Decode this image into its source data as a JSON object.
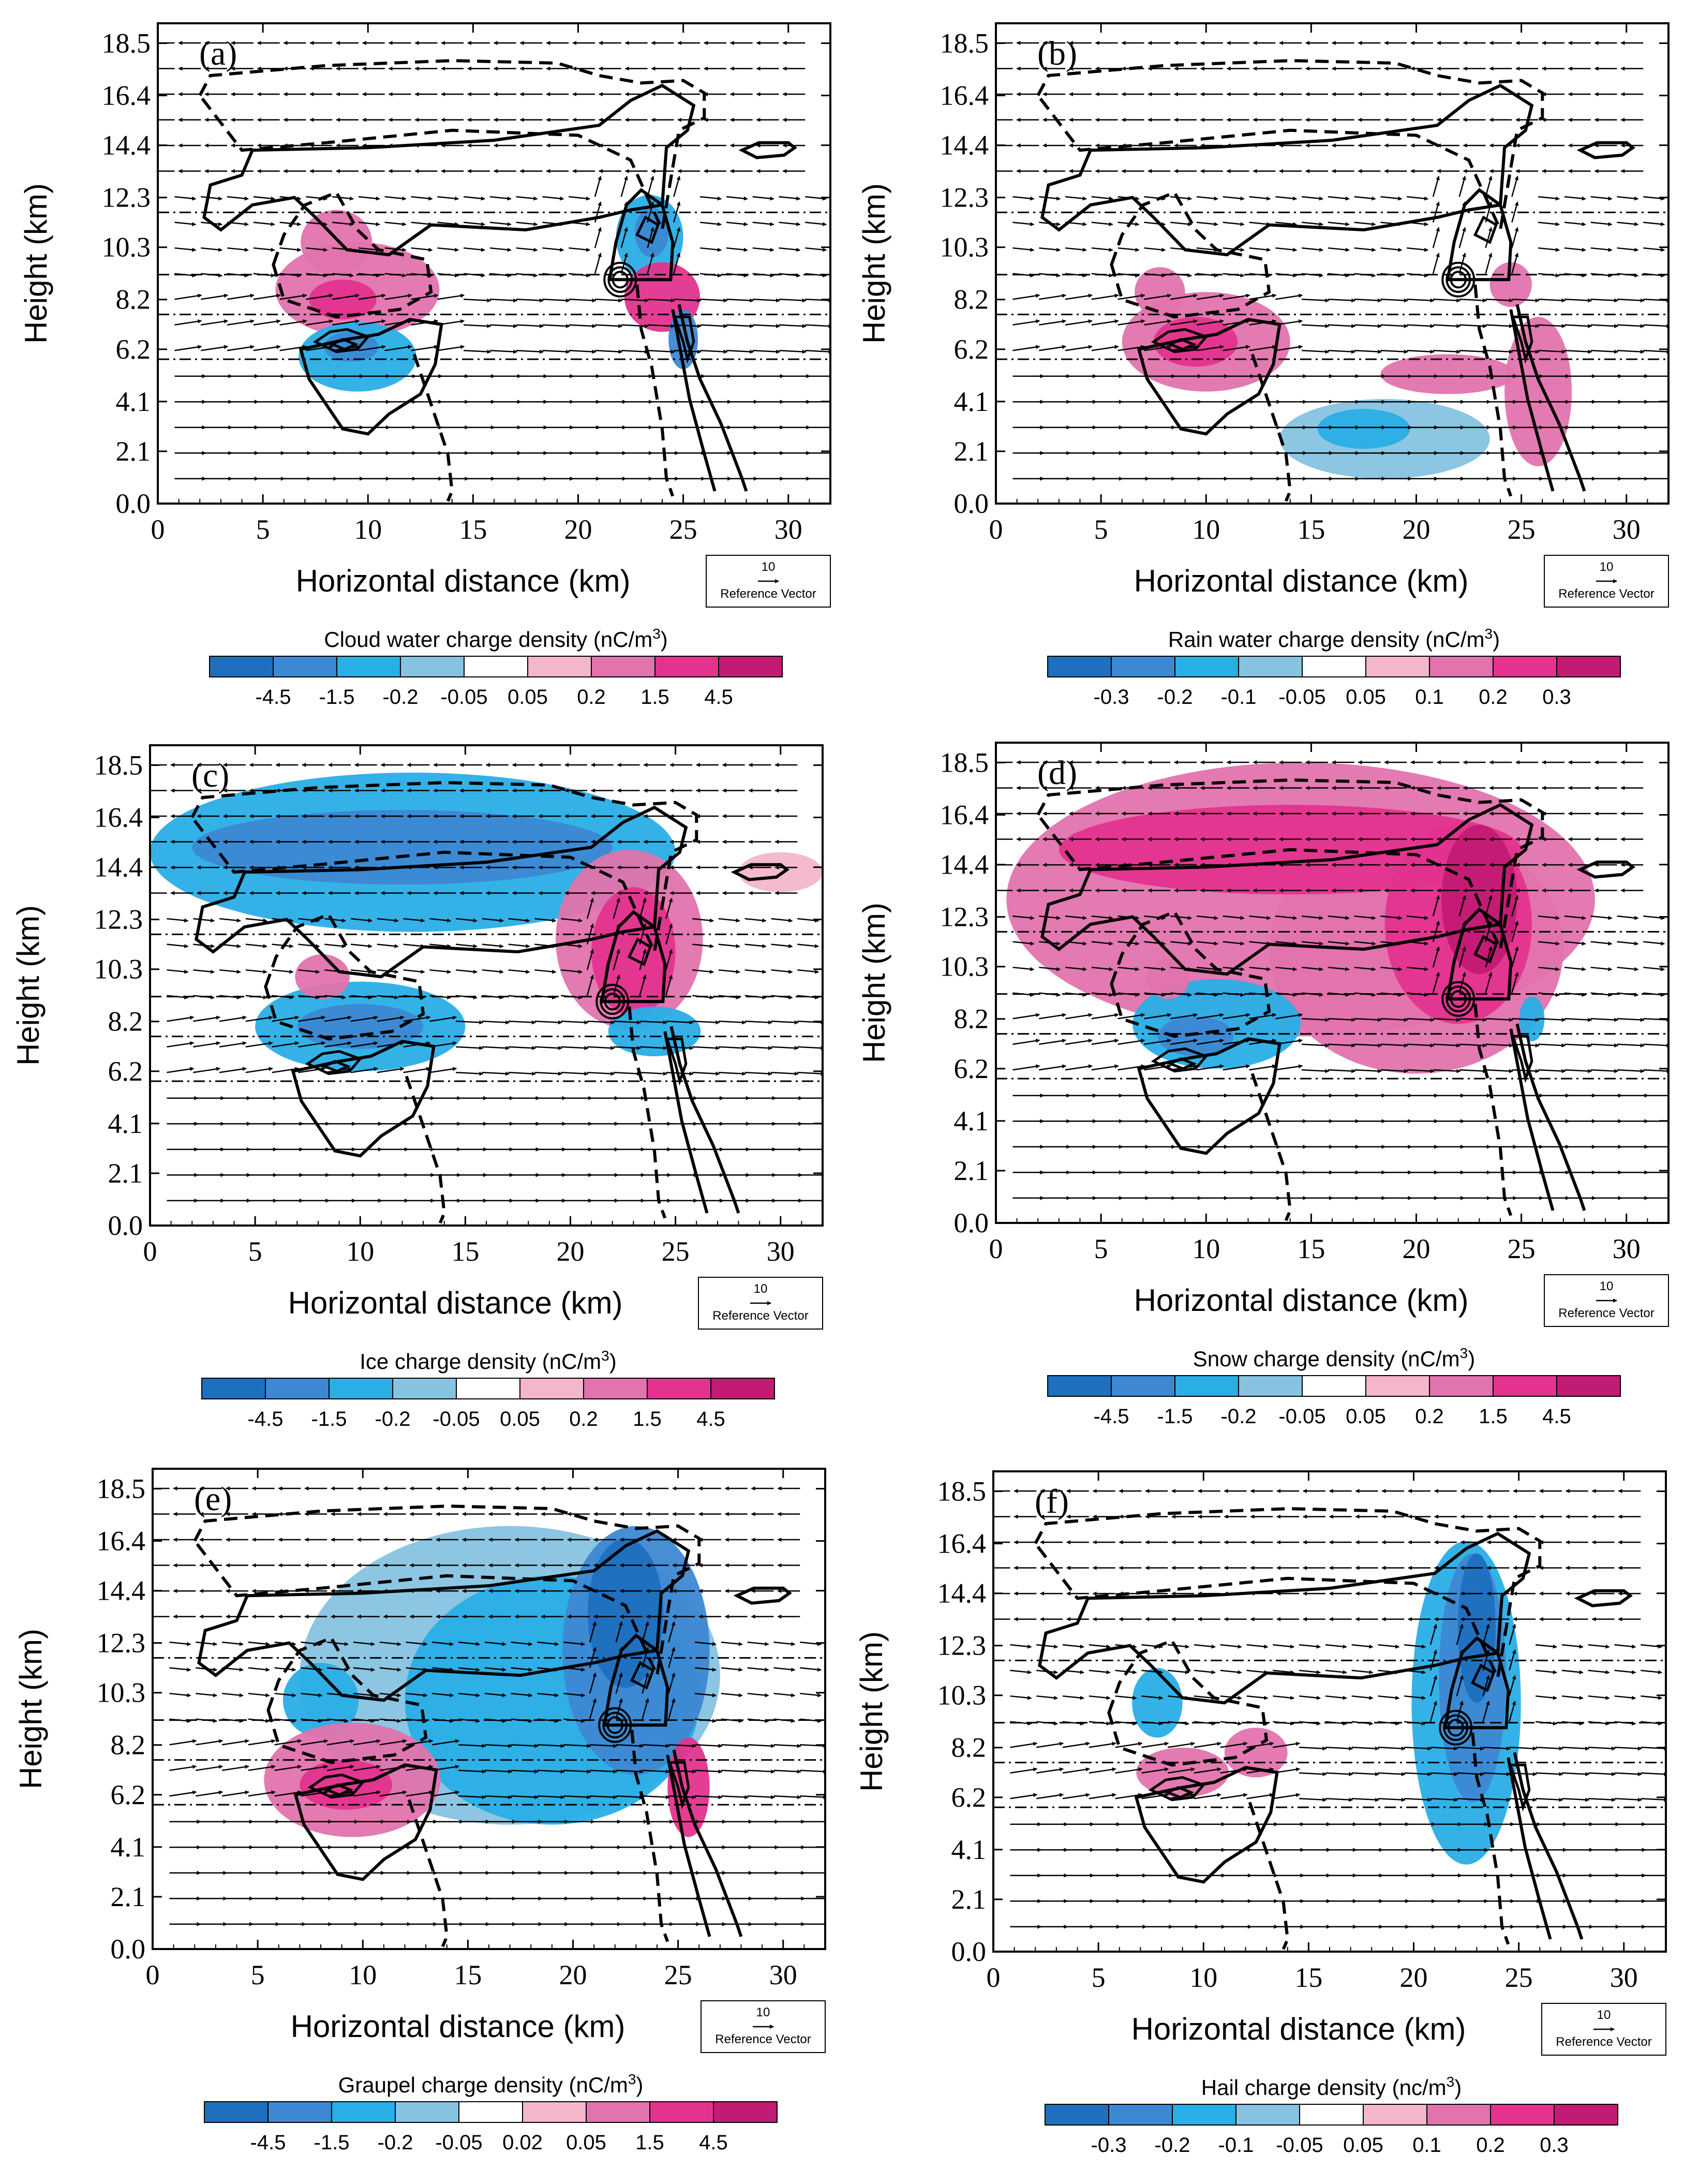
{
  "chart_data": [
    {
      "type": "contour",
      "panel_label": "(a)",
      "xlabel": "Horizontal distance (km)",
      "ylabel": "Height (km)",
      "x_ticks": [
        "0",
        "5",
        "10",
        "15",
        "20",
        "25",
        "30"
      ],
      "y_ticks": [
        "0.0",
        "2.1",
        "4.1",
        "6.2",
        "8.2",
        "10.3",
        "12.3",
        "14.4",
        "16.4",
        "18.5"
      ],
      "xlim": [
        0,
        32
      ],
      "ylim": [
        0,
        19.3
      ],
      "colorbar_title": "Cloud water charge density  (nC/m",
      "colorbar_unit_sup": "3",
      "colorbar_title_end": ")",
      "colorbar_levels": [
        "-4.5",
        "-1.5",
        "-0.2",
        "-0.05",
        "0.05",
        "0.2",
        "1.5",
        "4.5"
      ],
      "colorbar_colors": [
        "#1f6fbf",
        "#3d88d2",
        "#29aee6",
        "#86c3e1",
        "#ffffff",
        "#f3b6cb",
        "#e173ad",
        "#e3338e",
        "#c21b73"
      ],
      "reference_vector_value": "10",
      "reference_vector_label": "Reference Vector",
      "blobs": [
        {
          "cx": 9.5,
          "cy": 8.6,
          "rx": 3.9,
          "ry": 1.9,
          "level": 6
        },
        {
          "cx": 8.5,
          "cy": 10.5,
          "rx": 1.7,
          "ry": 1.3,
          "level": 6
        },
        {
          "cx": 8.8,
          "cy": 8.2,
          "rx": 1.6,
          "ry": 0.8,
          "level": 7
        },
        {
          "cx": 9.5,
          "cy": 5.9,
          "rx": 2.8,
          "ry": 1.4,
          "level": 2
        },
        {
          "cx": 9.2,
          "cy": 6.3,
          "rx": 1.3,
          "ry": 0.6,
          "level": 1
        },
        {
          "cx": 23.4,
          "cy": 10.7,
          "rx": 1.6,
          "ry": 1.7,
          "level": 2
        },
        {
          "cx": 23.5,
          "cy": 10.9,
          "rx": 0.8,
          "ry": 1.0,
          "level": 1
        },
        {
          "cx": 24.0,
          "cy": 8.3,
          "rx": 1.8,
          "ry": 1.4,
          "level": 7
        },
        {
          "cx": 25.0,
          "cy": 6.6,
          "rx": 0.7,
          "ry": 1.2,
          "level": 1
        }
      ]
    },
    {
      "type": "contour",
      "panel_label": "(b)",
      "xlabel": "Horizontal distance (km)",
      "ylabel": "Height (km)",
      "x_ticks": [
        "0",
        "5",
        "10",
        "15",
        "20",
        "25",
        "30"
      ],
      "y_ticks": [
        "0.0",
        "2.1",
        "4.1",
        "6.2",
        "8.2",
        "10.3",
        "12.3",
        "14.4",
        "16.4",
        "18.5"
      ],
      "xlim": [
        0,
        32
      ],
      "ylim": [
        0,
        19.3
      ],
      "colorbar_title": "Rain water charge density  (nC/m",
      "colorbar_unit_sup": "3",
      "colorbar_title_end": ")",
      "colorbar_levels": [
        "-0.3",
        "-0.2",
        "-0.1",
        "-0.05",
        "0.05",
        "0.1",
        "0.2",
        "0.3"
      ],
      "colorbar_colors": [
        "#1f6fbf",
        "#3d88d2",
        "#29aee6",
        "#86c3e1",
        "#ffffff",
        "#f3b6cb",
        "#e173ad",
        "#e3338e",
        "#c21b73"
      ],
      "reference_vector_value": "10",
      "reference_vector_label": "Reference Vector",
      "blobs": [
        {
          "cx": 10.0,
          "cy": 6.5,
          "rx": 4.0,
          "ry": 2.0,
          "level": 6
        },
        {
          "cx": 9.5,
          "cy": 6.5,
          "rx": 2.0,
          "ry": 1.0,
          "level": 7
        },
        {
          "cx": 7.8,
          "cy": 8.5,
          "rx": 1.2,
          "ry": 1.0,
          "level": 6
        },
        {
          "cx": 18.5,
          "cy": 2.6,
          "rx": 5.0,
          "ry": 1.6,
          "level": 3
        },
        {
          "cx": 17.5,
          "cy": 3.0,
          "rx": 2.2,
          "ry": 0.8,
          "level": 2
        },
        {
          "cx": 21.5,
          "cy": 5.2,
          "rx": 3.2,
          "ry": 0.8,
          "level": 6
        },
        {
          "cx": 25.8,
          "cy": 4.5,
          "rx": 1.6,
          "ry": 3.0,
          "level": 6
        },
        {
          "cx": 24.5,
          "cy": 8.8,
          "rx": 1.0,
          "ry": 0.9,
          "level": 6
        }
      ]
    },
    {
      "type": "contour",
      "panel_label": "(c)",
      "xlabel": "Horizontal distance (km)",
      "ylabel": "Height (km)",
      "x_ticks": [
        "0",
        "5",
        "10",
        "15",
        "20",
        "25",
        "30"
      ],
      "y_ticks": [
        "0.0",
        "2.1",
        "4.1",
        "6.2",
        "8.2",
        "10.3",
        "12.3",
        "14.4",
        "16.4",
        "18.5"
      ],
      "xlim": [
        0,
        32
      ],
      "ylim": [
        0,
        19.3
      ],
      "colorbar_title": "Ice charge density  (nC/m",
      "colorbar_unit_sup": "3",
      "colorbar_title_end": ")",
      "colorbar_levels": [
        "-4.5",
        "-1.5",
        "-0.2",
        "-0.05",
        "0.05",
        "0.2",
        "1.5",
        "4.5"
      ],
      "colorbar_colors": [
        "#1f6fbf",
        "#3d88d2",
        "#29aee6",
        "#86c3e1",
        "#ffffff",
        "#f3b6cb",
        "#e173ad",
        "#e3338e",
        "#c21b73"
      ],
      "reference_vector_value": "10",
      "reference_vector_label": "Reference Vector",
      "blobs": [
        {
          "cx": 12.5,
          "cy": 15.0,
          "rx": 12.5,
          "ry": 3.2,
          "level": 2
        },
        {
          "cx": 12.0,
          "cy": 15.2,
          "rx": 10.0,
          "ry": 1.5,
          "level": 1
        },
        {
          "cx": 10.0,
          "cy": 8.0,
          "rx": 5.0,
          "ry": 1.8,
          "level": 2
        },
        {
          "cx": 10.0,
          "cy": 8.0,
          "rx": 3.0,
          "ry": 0.9,
          "level": 1
        },
        {
          "cx": 22.8,
          "cy": 11.5,
          "rx": 3.5,
          "ry": 3.6,
          "level": 6
        },
        {
          "cx": 23.0,
          "cy": 11.0,
          "rx": 2.0,
          "ry": 2.6,
          "level": 7
        },
        {
          "cx": 24.0,
          "cy": 7.8,
          "rx": 2.2,
          "ry": 1.0,
          "level": 2
        },
        {
          "cx": 8.2,
          "cy": 10.0,
          "rx": 1.3,
          "ry": 0.9,
          "level": 6
        },
        {
          "cx": 30.0,
          "cy": 14.2,
          "rx": 2.0,
          "ry": 0.8,
          "level": 5
        }
      ]
    },
    {
      "type": "contour",
      "panel_label": "(d)",
      "xlabel": "Horizontal distance (km)",
      "ylabel": "Height (km)",
      "x_ticks": [
        "0",
        "5",
        "10",
        "15",
        "20",
        "25",
        "30"
      ],
      "y_ticks": [
        "0.0",
        "2.1",
        "4.1",
        "6.2",
        "8.2",
        "10.3",
        "12.3",
        "14.4",
        "16.4",
        "18.5"
      ],
      "xlim": [
        0,
        32
      ],
      "ylim": [
        0,
        19.3
      ],
      "colorbar_title": "Snow charge density  (nC/m",
      "colorbar_unit_sup": "3",
      "colorbar_title_end": ")",
      "colorbar_levels": [
        "-4.5",
        "-1.5",
        "-0.2",
        "-0.05",
        "0.05",
        "0.2",
        "1.5",
        "4.5"
      ],
      "colorbar_colors": [
        "#1f6fbf",
        "#3d88d2",
        "#29aee6",
        "#86c3e1",
        "#ffffff",
        "#f3b6cb",
        "#e173ad",
        "#e3338e",
        "#c21b73"
      ],
      "reference_vector_value": "10",
      "reference_vector_label": "Reference Vector",
      "blobs": [
        {
          "cx": 14.5,
          "cy": 13.0,
          "rx": 14.0,
          "ry": 5.5,
          "level": 6
        },
        {
          "cx": 20.0,
          "cy": 11.0,
          "rx": 7.0,
          "ry": 5.0,
          "level": 6
        },
        {
          "cx": 14.0,
          "cy": 15.0,
          "rx": 11.0,
          "ry": 1.8,
          "level": 7
        },
        {
          "cx": 22.0,
          "cy": 12.0,
          "rx": 3.5,
          "ry": 4.0,
          "level": 7
        },
        {
          "cx": 23.0,
          "cy": 13.0,
          "rx": 1.8,
          "ry": 3.0,
          "level": 8
        },
        {
          "cx": 10.5,
          "cy": 8.0,
          "rx": 4.0,
          "ry": 1.8,
          "level": 2
        },
        {
          "cx": 9.5,
          "cy": 7.5,
          "rx": 1.8,
          "ry": 0.8,
          "level": 1
        },
        {
          "cx": 8.2,
          "cy": 9.8,
          "rx": 1.0,
          "ry": 0.8,
          "level": 6
        },
        {
          "cx": 25.5,
          "cy": 8.2,
          "rx": 0.6,
          "ry": 0.9,
          "level": 2
        }
      ]
    },
    {
      "type": "contour",
      "panel_label": "(e)",
      "xlabel": "Horizontal distance (km)",
      "ylabel": "Height (km)",
      "x_ticks": [
        "0",
        "5",
        "10",
        "15",
        "20",
        "25",
        "30"
      ],
      "y_ticks": [
        "0.0",
        "2.1",
        "4.1",
        "6.2",
        "8.2",
        "10.3",
        "12.3",
        "14.4",
        "16.4",
        "18.5"
      ],
      "xlim": [
        0,
        32
      ],
      "ylim": [
        0,
        19.3
      ],
      "colorbar_title": "Graupel charge density  (nC/m",
      "colorbar_unit_sup": "3",
      "colorbar_title_end": ")",
      "colorbar_levels": [
        "-4.5",
        "-1.5",
        "-0.2",
        "-0.05",
        "0.02",
        "0.05",
        "1.5",
        "4.5"
      ],
      "colorbar_colors": [
        "#1f6fbf",
        "#3d88d2",
        "#29aee6",
        "#86c3e1",
        "#ffffff",
        "#f3b6cb",
        "#e173ad",
        "#e3338e",
        "#c21b73"
      ],
      "reference_vector_value": "10",
      "reference_vector_label": "Reference Vector",
      "blobs": [
        {
          "cx": 17.0,
          "cy": 11.0,
          "rx": 10.0,
          "ry": 6.0,
          "level": 3
        },
        {
          "cx": 19.0,
          "cy": 10.0,
          "rx": 7.0,
          "ry": 5.0,
          "level": 2
        },
        {
          "cx": 23.0,
          "cy": 12.0,
          "rx": 3.5,
          "ry": 5.0,
          "level": 1
        },
        {
          "cx": 22.5,
          "cy": 13.5,
          "rx": 1.8,
          "ry": 3.0,
          "level": 0
        },
        {
          "cx": 8.0,
          "cy": 10.0,
          "rx": 1.8,
          "ry": 1.5,
          "level": 2
        },
        {
          "cx": 9.5,
          "cy": 6.8,
          "rx": 4.2,
          "ry": 2.3,
          "level": 6
        },
        {
          "cx": 9.2,
          "cy": 6.6,
          "rx": 2.2,
          "ry": 1.0,
          "level": 7
        },
        {
          "cx": 25.5,
          "cy": 6.5,
          "rx": 1.0,
          "ry": 2.0,
          "level": 7
        }
      ]
    },
    {
      "type": "contour",
      "panel_label": "(f)",
      "xlabel": "Horizontal distance (km)",
      "ylabel": "Height (km)",
      "x_ticks": [
        "0",
        "5",
        "10",
        "15",
        "20",
        "25",
        "30"
      ],
      "y_ticks": [
        "0.0",
        "2.1",
        "4.1",
        "6.2",
        "8.2",
        "10.3",
        "12.3",
        "14.4",
        "16.4",
        "18.5"
      ],
      "xlim": [
        0,
        32
      ],
      "ylim": [
        0,
        19.3
      ],
      "colorbar_title": "Hail charge density  (nc/m",
      "colorbar_unit_sup": "3",
      "colorbar_title_end": ")",
      "colorbar_levels": [
        "-0.3",
        "-0.2",
        "-0.1",
        "-0.05",
        "0.05",
        "0.1",
        "0.2",
        "0.3"
      ],
      "colorbar_colors": [
        "#1f6fbf",
        "#3d88d2",
        "#29aee6",
        "#86c3e1",
        "#ffffff",
        "#f3b6cb",
        "#e173ad",
        "#e3338e",
        "#c21b73"
      ],
      "reference_vector_value": "10",
      "reference_vector_label": "Reference Vector",
      "blobs": [
        {
          "cx": 22.5,
          "cy": 10.0,
          "rx": 2.6,
          "ry": 6.5,
          "level": 2
        },
        {
          "cx": 22.8,
          "cy": 11.0,
          "rx": 1.6,
          "ry": 5.0,
          "level": 1
        },
        {
          "cx": 23.0,
          "cy": 13.0,
          "rx": 0.9,
          "ry": 3.0,
          "level": 0
        },
        {
          "cx": 7.8,
          "cy": 10.0,
          "rx": 1.2,
          "ry": 1.4,
          "level": 2
        },
        {
          "cx": 9.0,
          "cy": 7.2,
          "rx": 2.2,
          "ry": 1.0,
          "level": 6
        },
        {
          "cx": 12.5,
          "cy": 8.0,
          "rx": 1.5,
          "ry": 1.0,
          "level": 6
        }
      ]
    }
  ]
}
